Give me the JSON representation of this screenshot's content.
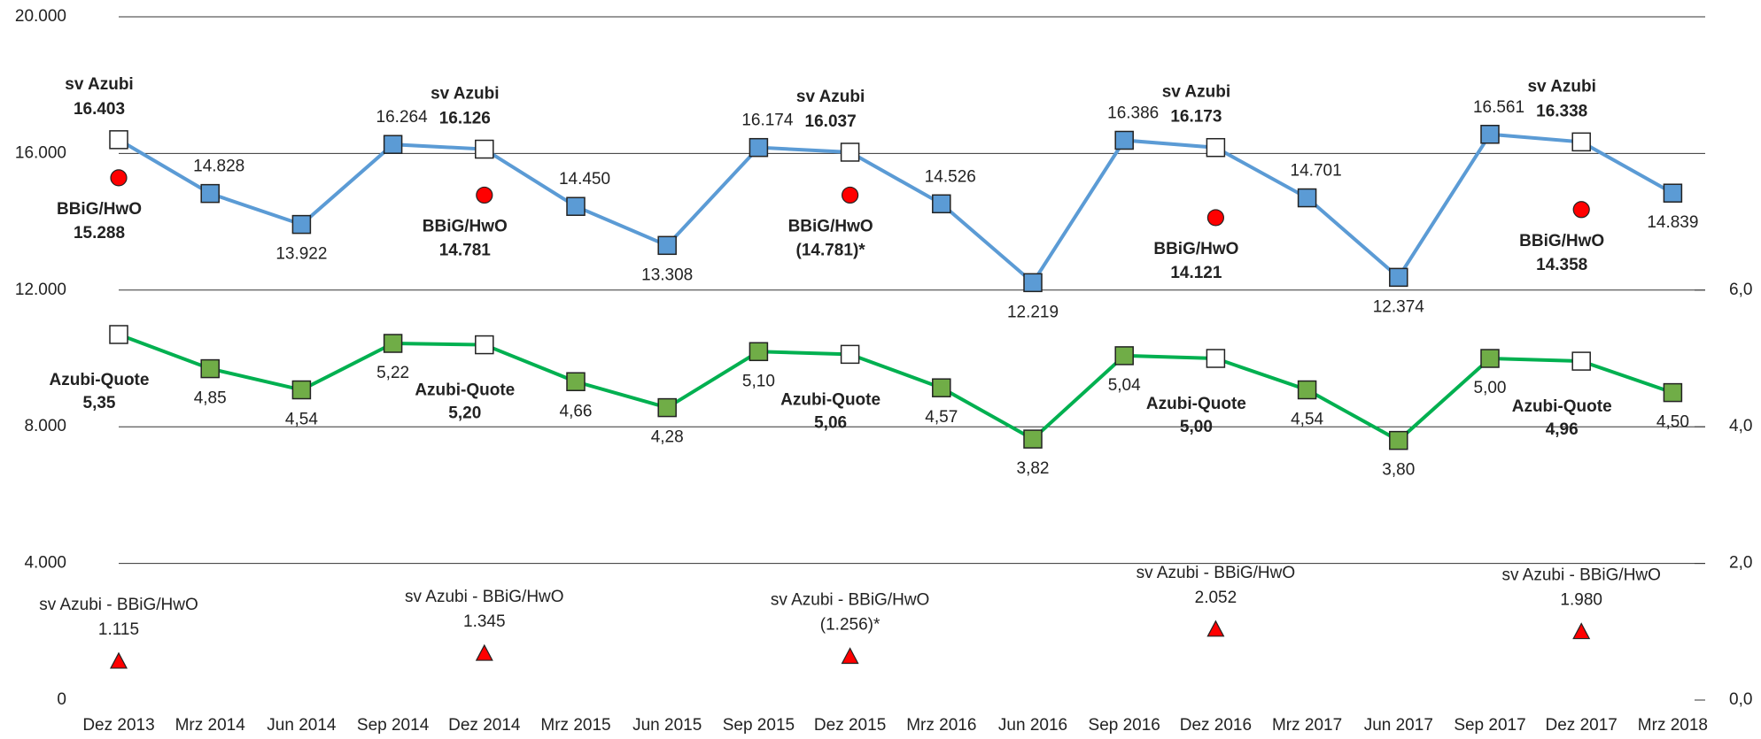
{
  "chart_data": {
    "type": "line",
    "categories": [
      "Dez 2013",
      "Mrz 2014",
      "Jun 2014",
      "Sep 2014",
      "Dez 2014",
      "Mrz 2015",
      "Jun 2015",
      "Sep 2015",
      "Dez 2015",
      "Mrz 2016",
      "Jun 2016",
      "Sep 2016",
      "Dez 2016",
      "Mrz 2017",
      "Jun 2017",
      "Sep 2017",
      "Dez 2017",
      "Mrz 2018"
    ],
    "ylim": [
      0,
      20000
    ],
    "yticks": [
      0,
      {
        "value": 4000,
        "label": "4.000"
      },
      {
        "value": 8000,
        "label": "8.000"
      },
      {
        "value": 12000,
        "label": "12.000"
      },
      {
        "value": 16000,
        "label": "16.000"
      },
      {
        "value": 20000,
        "label": "20.000"
      }
    ],
    "y2lim": [
      0,
      10
    ],
    "y2ticks": [
      {
        "value": 0,
        "label": "0,0"
      },
      {
        "value": 2,
        "label": "2,0"
      },
      {
        "value": 4,
        "label": "4,0"
      },
      {
        "value": 6,
        "label": "6,0"
      }
    ],
    "grid": true,
    "series": [
      {
        "name": "sv Azubi",
        "color": "#5b9bd5",
        "marker": "square",
        "values": [
          16403,
          14828,
          13922,
          16264,
          16126,
          14450,
          13308,
          16174,
          16037,
          14526,
          12219,
          16386,
          16173,
          14701,
          12374,
          16561,
          16338,
          14839
        ],
        "value_labels": [
          "16.403",
          "14.828",
          "13.922",
          "16.264",
          "16.126",
          "14.450",
          "13.308",
          "16.174",
          "16.037",
          "14.526",
          "12.219",
          "16.386",
          "16.173",
          "14.701",
          "12.374",
          "16.561",
          "16.338",
          "14.839"
        ]
      },
      {
        "name": "Azubi-Quote",
        "color": "#00b050",
        "marker_color": "#70ad47",
        "marker": "square",
        "axis": "y2",
        "values": [
          5.35,
          4.85,
          4.54,
          5.22,
          5.2,
          4.66,
          4.28,
          5.1,
          5.06,
          4.57,
          3.82,
          5.04,
          5.0,
          4.54,
          3.8,
          5.0,
          4.96,
          4.5
        ],
        "value_labels": [
          "5,35",
          "4,85",
          "4,54",
          "5,22",
          "5,20",
          "4,66",
          "4,28",
          "5,10",
          "5,06",
          "4,57",
          "3,82",
          "5,04",
          "5,00",
          "4,54",
          "3,80",
          "5,00",
          "4,96",
          "4,50"
        ]
      },
      {
        "name": "BBiG/HwO",
        "color": "#ff0000",
        "marker": "circle",
        "values": [
          15288,
          null,
          null,
          null,
          14781,
          null,
          null,
          null,
          14781,
          null,
          null,
          null,
          14121,
          null,
          null,
          null,
          14358,
          null
        ],
        "value_labels": [
          "15.288",
          null,
          null,
          null,
          "14.781",
          null,
          null,
          null,
          "(14.781)*",
          null,
          null,
          null,
          "14.121",
          null,
          null,
          null,
          "14.358",
          null
        ]
      },
      {
        "name": "sv Azubi - BBiG/HwO",
        "color": "#ff0000",
        "marker": "triangle",
        "values": [
          1115,
          null,
          null,
          null,
          1345,
          null,
          null,
          null,
          1256,
          null,
          null,
          null,
          2052,
          null,
          null,
          null,
          1980,
          null
        ],
        "value_labels": [
          "1.115",
          null,
          null,
          null,
          "1.345",
          null,
          null,
          null,
          "(1.256)*",
          null,
          null,
          null,
          "2.052",
          null,
          null,
          null,
          "1.980",
          null
        ]
      }
    ]
  }
}
